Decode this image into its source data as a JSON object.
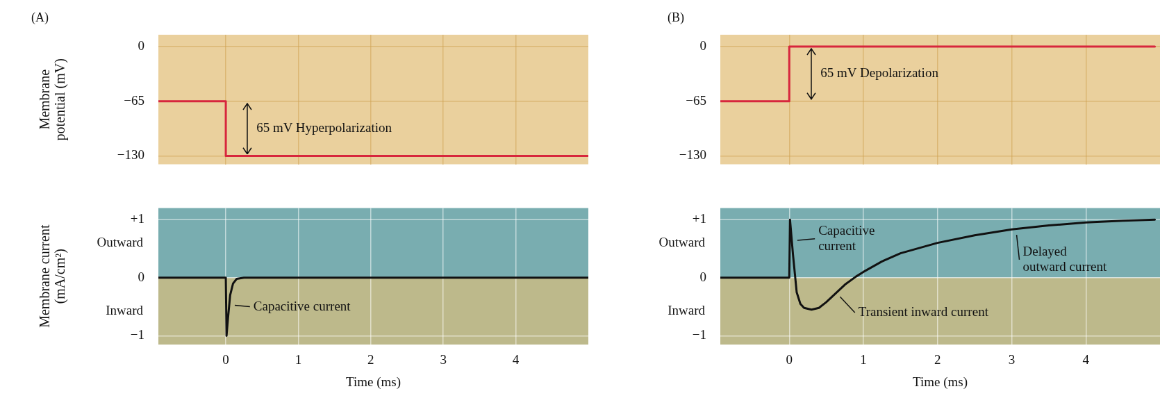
{
  "chart_data": [
    {
      "type": "line",
      "title": "(A)",
      "ylabel": "Membrane\npotential (mV)",
      "xlim": [
        -0.93,
        5.0
      ],
      "ylim": [
        -140,
        14
      ],
      "xticks": [
        0,
        1,
        2,
        3,
        4
      ],
      "yticks": [
        {
          "value": -130,
          "label": "−130"
        },
        {
          "value": -65,
          "label": "−65"
        },
        {
          "value": 0,
          "label": "0"
        }
      ],
      "tick_labels": "y",
      "grid": true,
      "x": [
        -0.93,
        0,
        0,
        5.0
      ],
      "values": [
        -65,
        -65,
        -130,
        -130
      ],
      "color": "#d7263d",
      "annotations": [
        "65 mV Hyperpolarization"
      ]
    },
    {
      "type": "line",
      "title": "(B)",
      "xlim": [
        -0.93,
        5.0
      ],
      "ylim": [
        -140,
        14
      ],
      "xticks": [
        0,
        1,
        2,
        3,
        4
      ],
      "yticks": [
        {
          "value": -130,
          "label": "−130"
        },
        {
          "value": -65,
          "label": "−65"
        },
        {
          "value": 0,
          "label": "0"
        }
      ],
      "tick_labels": "y",
      "grid": true,
      "x": [
        -0.93,
        0,
        0,
        4.93
      ],
      "values": [
        -65,
        -65,
        0,
        0
      ],
      "color": "#d7263d",
      "annotations": [
        "65 mV Depolarization"
      ]
    },
    {
      "type": "line",
      "ylabel": "Membrane current\n(mA/cm²)",
      "xlabel": "Time (ms)",
      "xlim": [
        -0.93,
        5.0
      ],
      "ylim": [
        -1.15,
        1.2
      ],
      "xticks": [
        0,
        1,
        2,
        3,
        4
      ],
      "yticks": [
        {
          "value": -1,
          "label": "−1"
        },
        {
          "value": 0,
          "label": "0"
        },
        {
          "value": 1,
          "label": "+1"
        }
      ],
      "grid": true,
      "bands": [
        {
          "axis": "y",
          "from": 0,
          "to": 1.2,
          "label": "Outward",
          "color": "#79adb0"
        },
        {
          "axis": "y",
          "from": -1.15,
          "to": 0,
          "label": "Inward",
          "color": "#bdb98b"
        }
      ],
      "x": [
        -0.93,
        0,
        0.01,
        0.03,
        0.06,
        0.1,
        0.15,
        0.25,
        5.0
      ],
      "values": [
        0,
        0,
        -1.0,
        -0.7,
        -0.3,
        -0.1,
        -0.02,
        0,
        0
      ],
      "color": "#111111",
      "annotations": [
        "Capacitive current"
      ]
    },
    {
      "type": "line",
      "xlabel": "Time (ms)",
      "xlim": [
        -0.93,
        5.0
      ],
      "ylim": [
        -1.15,
        1.2
      ],
      "xticks": [
        0,
        1,
        2,
        3,
        4
      ],
      "yticks": [
        {
          "value": -1,
          "label": "−1"
        },
        {
          "value": 0,
          "label": "0"
        },
        {
          "value": 1,
          "label": "+1"
        }
      ],
      "grid": true,
      "bands": [
        {
          "axis": "y",
          "from": 0,
          "to": 1.2,
          "label": "Outward",
          "color": "#79adb0"
        },
        {
          "axis": "y",
          "from": -1.15,
          "to": 0,
          "label": "Inward",
          "color": "#bdb98b"
        }
      ],
      "x": [
        -0.93,
        0,
        0.01,
        0.05,
        0.1,
        0.15,
        0.2,
        0.3,
        0.4,
        0.5,
        0.6,
        0.75,
        0.9,
        1.0,
        1.25,
        1.5,
        2.0,
        2.5,
        3.0,
        3.5,
        4.0,
        4.5,
        4.93
      ],
      "values": [
        0,
        0,
        1.0,
        0.4,
        -0.25,
        -0.45,
        -0.52,
        -0.55,
        -0.52,
        -0.42,
        -0.3,
        -0.12,
        0.02,
        0.1,
        0.28,
        0.42,
        0.6,
        0.73,
        0.83,
        0.9,
        0.95,
        0.98,
        1.0
      ],
      "color": "#111111",
      "annotations": [
        "Capacitive\ncurrent",
        "Delayed\noutward current",
        "Transient inward current"
      ]
    }
  ]
}
